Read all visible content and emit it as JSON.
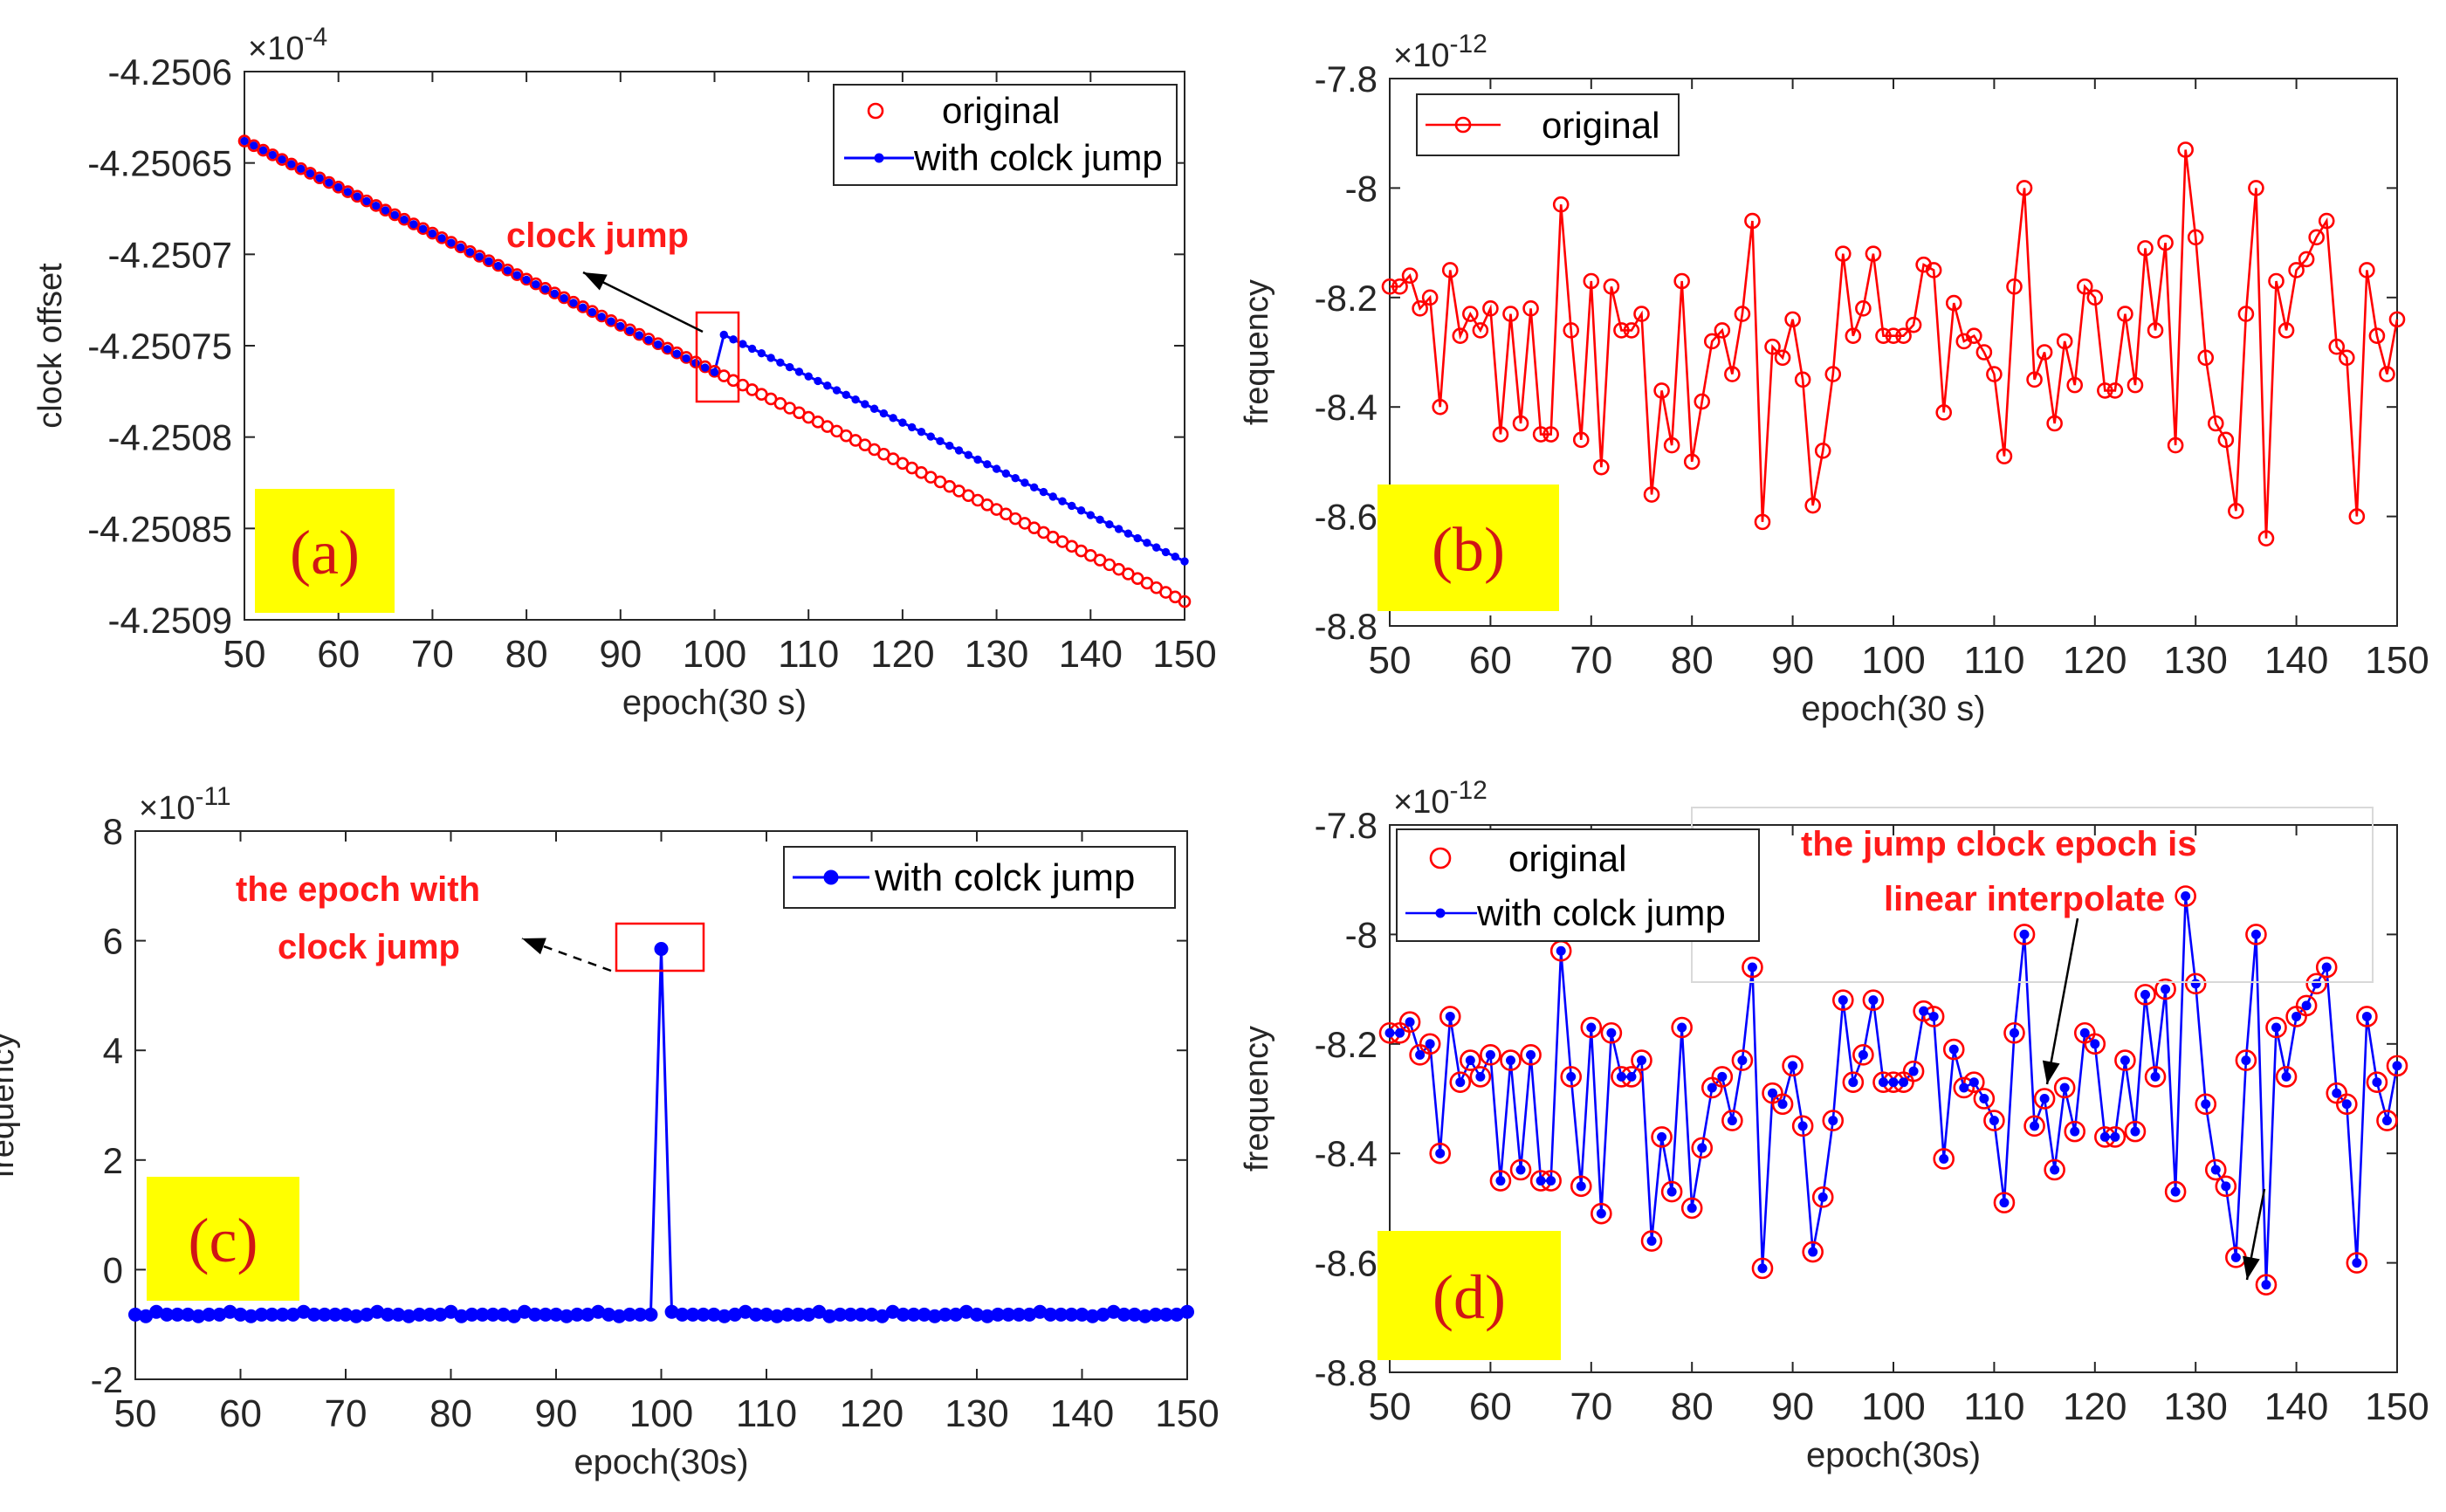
{
  "chart_data": [
    {
      "panel": "a",
      "type": "line",
      "badge": "(a)",
      "xlabel": "epoch(30 s)",
      "ylabel": "clock offset",
      "exponent": "×10",
      "exponent_power": "-4",
      "xlim": [
        50,
        150
      ],
      "xticks": [
        50,
        60,
        70,
        80,
        90,
        100,
        110,
        120,
        130,
        140,
        150
      ],
      "ylim": [
        -4.2509,
        -4.2506
      ],
      "yticks": [
        -4.2506,
        -4.25065,
        -4.2507,
        -4.25075,
        -4.2508,
        -4.25085,
        -4.2509
      ],
      "ytick_labels": [
        "-4.2506",
        "-4.25065",
        "-4.2507",
        "-4.25075",
        "-4.2508",
        "-4.25085",
        "-4.2509"
      ],
      "series": [
        {
          "name": "original",
          "style": "circles",
          "color": "#ff0000",
          "x_start": 50,
          "x_end": 150,
          "y_start": -4.250638,
          "y_end": -4.25089
        },
        {
          "name": "with colck jump",
          "style": "line-dots",
          "color": "#0000ff",
          "x_start": 50,
          "x_end": 150,
          "y_start": -4.250638,
          "y_end": -4.250868,
          "jump_at": 100,
          "jump_size": 2.3e-05
        }
      ],
      "annotation": {
        "text": "clock jump",
        "target_x": 100
      }
    },
    {
      "panel": "b",
      "type": "line",
      "badge": "(b)",
      "xlabel": "epoch(30 s)",
      "ylabel": "frequency",
      "exponent": "×10",
      "exponent_power": "-12",
      "xlim": [
        50,
        150
      ],
      "xticks": [
        50,
        60,
        70,
        80,
        90,
        100,
        110,
        120,
        130,
        140,
        150
      ],
      "ylim": [
        -8.8,
        -7.8
      ],
      "yticks": [
        -7.8,
        -8,
        -8.2,
        -8.4,
        -8.6,
        -8.8
      ],
      "ytick_labels": [
        "-7.8",
        "-8",
        "-8.2",
        "-8.4",
        "-8.6",
        "-8.8"
      ],
      "series": [
        {
          "name": "original",
          "style": "line-circles",
          "color": "#ff0000"
        }
      ]
    },
    {
      "panel": "c",
      "type": "line",
      "badge": "(c)",
      "xlabel": "epoch(30s)",
      "ylabel": "frequency",
      "exponent": "×10",
      "exponent_power": "-11",
      "xlim": [
        50,
        150
      ],
      "xticks": [
        50,
        60,
        70,
        80,
        90,
        100,
        110,
        120,
        130,
        140,
        150
      ],
      "ylim": [
        -2,
        8
      ],
      "yticks": [
        8,
        6,
        4,
        2,
        0,
        -2
      ],
      "ytick_labels": [
        "8",
        "6",
        "4",
        "2",
        "0",
        "-2"
      ],
      "series": [
        {
          "name": "with colck jump",
          "style": "line-dots",
          "color": "#0000ff",
          "baseline": -0.82,
          "spike_x": 100,
          "spike_y": 5.85
        }
      ],
      "annotation": {
        "text_lines": [
          "the epoch with",
          "clock jump"
        ],
        "target_x": 100
      }
    },
    {
      "panel": "d",
      "type": "line",
      "badge": "(d)",
      "xlabel": "epoch(30s)",
      "ylabel": "frequency",
      "exponent": "×10",
      "exponent_power": "-12",
      "xlim": [
        50,
        150
      ],
      "xticks": [
        50,
        60,
        70,
        80,
        90,
        100,
        110,
        120,
        130,
        140,
        150
      ],
      "ylim": [
        -8.8,
        -7.8
      ],
      "yticks": [
        -7.8,
        -8,
        -8.2,
        -8.4,
        -8.6,
        -8.8
      ],
      "ytick_labels": [
        "-7.8",
        "-8",
        "-8.2",
        "-8.4",
        "-8.6",
        "-8.8"
      ],
      "series": [
        {
          "name": "original",
          "style": "circles",
          "color": "#ff0000"
        },
        {
          "name": "with colck jump",
          "style": "line-dots",
          "color": "#0000ff"
        }
      ],
      "annotation": {
        "text_lines": [
          "the jump clock epoch is",
          "linear interpolate"
        ]
      }
    }
  ],
  "frequency_series": {
    "x_start": 50,
    "values": [
      -8.18,
      -8.18,
      -8.16,
      -8.22,
      -8.2,
      -8.4,
      -8.15,
      -8.27,
      -8.23,
      -8.26,
      -8.22,
      -8.45,
      -8.23,
      -8.43,
      -8.22,
      -8.45,
      -8.45,
      -8.03,
      -8.26,
      -8.46,
      -8.17,
      -8.51,
      -8.18,
      -8.26,
      -8.26,
      -8.23,
      -8.56,
      -8.37,
      -8.47,
      -8.17,
      -8.5,
      -8.39,
      -8.28,
      -8.26,
      -8.34,
      -8.23,
      -8.06,
      -8.61,
      -8.29,
      -8.31,
      -8.24,
      -8.35,
      -8.58,
      -8.48,
      -8.34,
      -8.12,
      -8.27,
      -8.22,
      -8.12,
      -8.27,
      -8.27,
      -8.27,
      -8.25,
      -8.14,
      -8.15,
      -8.41,
      -8.21,
      -8.28,
      -8.27,
      -8.3,
      -8.34,
      -8.49,
      -8.18,
      -8.0,
      -8.35,
      -8.3,
      -8.43,
      -8.28,
      -8.36,
      -8.18,
      -8.2,
      -8.37,
      -8.37,
      -8.23,
      -8.36,
      -8.11,
      -8.26,
      -8.1,
      -8.47,
      -7.93,
      -8.09,
      -8.31,
      -8.43,
      -8.46,
      -8.59,
      -8.23,
      -8.0,
      -8.64,
      -8.17,
      -8.26,
      -8.15,
      -8.13,
      -8.09,
      -8.06,
      -8.29,
      -8.31,
      -8.6,
      -8.15,
      -8.27,
      -8.34,
      -8.24
    ]
  },
  "colors": {
    "red": "#ff0000",
    "blue": "#0000ff",
    "badge_bg": "#ffff00",
    "axis": "#262626"
  }
}
